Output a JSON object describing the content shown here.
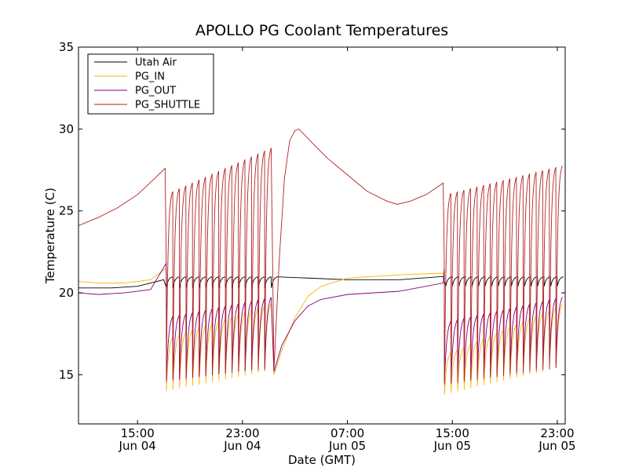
{
  "chart_data": {
    "type": "line",
    "title": "APOLLO PG Coolant Temperatures",
    "xlabel": "Date (GMT)",
    "ylabel": "Temperature (C)",
    "x_unit": "hours since Jun 04 00:00 GMT",
    "xlim": [
      10.5,
      47.6
    ],
    "ylim": [
      12,
      35
    ],
    "grid": false,
    "legend_position": "top-left",
    "x_ticks": [
      {
        "value": 15,
        "line1": "15:00",
        "line2": "Jun 04"
      },
      {
        "value": 23,
        "line1": "23:00",
        "line2": "Jun 04"
      },
      {
        "value": 31,
        "line1": "07:00",
        "line2": "Jun 05"
      },
      {
        "value": 39,
        "line1": "15:00",
        "line2": "Jun 05"
      },
      {
        "value": 47,
        "line1": "23:00",
        "line2": "Jun 05"
      }
    ],
    "y_ticks": [
      {
        "value": 15,
        "label": "15"
      },
      {
        "value": 20,
        "label": "20"
      },
      {
        "value": 25,
        "label": "25"
      },
      {
        "value": 30,
        "label": "30"
      },
      {
        "value": 35,
        "label": "35"
      }
    ],
    "series": [
      {
        "name": "Utah Air",
        "color": "#000000",
        "segments": [
          {
            "kind": "points",
            "points": [
              [
                10.5,
                20.3
              ],
              [
                13,
                20.3
              ],
              [
                15,
                20.4
              ],
              [
                17,
                20.8
              ]
            ]
          },
          {
            "kind": "sawtooth",
            "start": 17.2,
            "end": 25.5,
            "period": 0.5,
            "low": 20.3,
            "high": 21.0,
            "shape": 0.3
          },
          {
            "kind": "points",
            "points": [
              [
                25.5,
                20.9
              ],
              [
                28,
                20.9
              ],
              [
                31,
                20.8
              ],
              [
                35,
                20.8
              ],
              [
                38.3,
                21.0
              ]
            ]
          },
          {
            "kind": "sawtooth",
            "start": 38.5,
            "end": 47.6,
            "period": 0.5,
            "low": 20.4,
            "high": 21.0,
            "shape": 0.3
          }
        ]
      },
      {
        "name": "PG_IN",
        "color": "#ffb300",
        "segments": [
          {
            "kind": "points",
            "points": [
              [
                10.5,
                20.7
              ],
              [
                12,
                20.6
              ],
              [
                14,
                20.6
              ],
              [
                16,
                20.8
              ],
              [
                17.2,
                21.1
              ]
            ]
          },
          {
            "kind": "sawtooth",
            "start": 17.2,
            "end": 25.4,
            "period": 0.5,
            "low": 14.0,
            "high": 17.5,
            "lowEnd": 15.2,
            "highEnd": 19.6,
            "shape": 0.35,
            "firstSpike": 21.5
          },
          {
            "kind": "points",
            "points": [
              [
                25.4,
                15.0
              ],
              [
                26,
                16.5
              ],
              [
                27,
                18.5
              ],
              [
                28,
                19.8
              ],
              [
                29,
                20.4
              ],
              [
                31,
                20.9
              ],
              [
                35,
                21.1
              ],
              [
                38.3,
                21.2
              ]
            ]
          },
          {
            "kind": "sawtooth",
            "start": 38.4,
            "end": 47.6,
            "period": 0.5,
            "low": 13.8,
            "high": 16.5,
            "lowEnd": 15.4,
            "highEnd": 19.5,
            "shape": 0.35,
            "firstSpike": 21.0
          }
        ]
      },
      {
        "name": "PG_OUT",
        "color": "#800080",
        "segments": [
          {
            "kind": "points",
            "points": [
              [
                10.5,
                20.0
              ],
              [
                12,
                19.9
              ],
              [
                14,
                20.0
              ],
              [
                16,
                20.2
              ],
              [
                17.2,
                20.5
              ]
            ]
          },
          {
            "kind": "sawtooth",
            "start": 17.2,
            "end": 25.4,
            "period": 0.5,
            "low": 14.6,
            "high": 18.8,
            "lowEnd": 15.4,
            "highEnd": 20.0,
            "shape": 0.35,
            "firstSpike": 21.8
          },
          {
            "kind": "points",
            "points": [
              [
                25.4,
                15.2
              ],
              [
                26,
                16.8
              ],
              [
                27,
                18.3
              ],
              [
                28,
                19.2
              ],
              [
                29,
                19.6
              ],
              [
                31,
                19.9
              ],
              [
                35,
                20.1
              ],
              [
                38.3,
                20.6
              ]
            ]
          },
          {
            "kind": "sawtooth",
            "start": 38.4,
            "end": 47.6,
            "period": 0.5,
            "low": 14.5,
            "high": 18.5,
            "lowEnd": 15.6,
            "highEnd": 20.0,
            "shape": 0.35,
            "firstSpike": 21.5
          }
        ]
      },
      {
        "name": "PG_SHUTTLE",
        "color": "#b22222",
        "segments": [
          {
            "kind": "points",
            "points": [
              [
                10.5,
                24.1
              ],
              [
                12,
                24.6
              ],
              [
                13.5,
                25.2
              ],
              [
                15,
                26.0
              ],
              [
                16.2,
                26.9
              ],
              [
                17.1,
                27.6
              ]
            ]
          },
          {
            "kind": "sawtooth",
            "start": 17.2,
            "end": 25.4,
            "period": 0.5,
            "low": 15.0,
            "high": 26.4,
            "lowEnd": 15.3,
            "highEnd": 29.1,
            "shape": 0.25,
            "firstSpike": 22.5
          },
          {
            "kind": "points",
            "points": [
              [
                25.4,
                15.3
              ],
              [
                25.8,
                22
              ],
              [
                26.2,
                27
              ],
              [
                26.6,
                29.3
              ],
              [
                27,
                29.9
              ],
              [
                27.3,
                30.0
              ],
              [
                28.5,
                29.0
              ],
              [
                29.5,
                28.2
              ],
              [
                31,
                27.2
              ],
              [
                32.5,
                26.2
              ],
              [
                34,
                25.6
              ],
              [
                34.8,
                25.4
              ],
              [
                35.8,
                25.6
              ],
              [
                37,
                26.0
              ],
              [
                38.3,
                26.7
              ]
            ]
          },
          {
            "kind": "sawtooth",
            "start": 38.4,
            "end": 47.6,
            "period": 0.5,
            "low": 14.4,
            "high": 26.3,
            "lowEnd": 15.4,
            "highEnd": 28.0,
            "shape": 0.25,
            "firstSpike": 22.0
          }
        ]
      }
    ]
  }
}
